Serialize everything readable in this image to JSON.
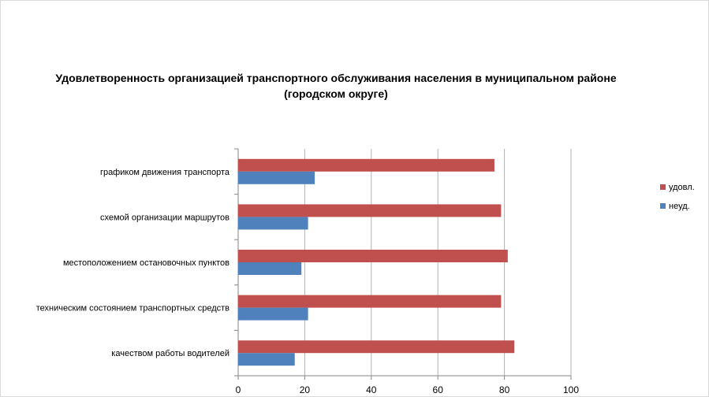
{
  "chart_data": {
    "type": "bar",
    "orientation": "horizontal",
    "title_lines": [
      "Удовлетворенность организацией транспортного обслуживания населения в муниципальном районе",
      "(городском округе)"
    ],
    "categories": [
      "графиком  движения  транспорта",
      "схемой организации маршрутов",
      "местоположением  остановочных пунктов",
      "техническим  состоянием транспортных средств",
      "качеством  работы водителей"
    ],
    "series": [
      {
        "name": "удовл.",
        "color": "#c0504d",
        "values": [
          77,
          79,
          81,
          79,
          83
        ]
      },
      {
        "name": "неуд.",
        "color": "#4f81bd",
        "values": [
          23,
          21,
          19,
          21,
          17
        ]
      }
    ],
    "xlim": [
      0,
      100
    ],
    "xticks": [
      0,
      20,
      40,
      60,
      80,
      100
    ],
    "xlabel": "",
    "ylabel": "",
    "grid": true,
    "legend_position": "right"
  }
}
